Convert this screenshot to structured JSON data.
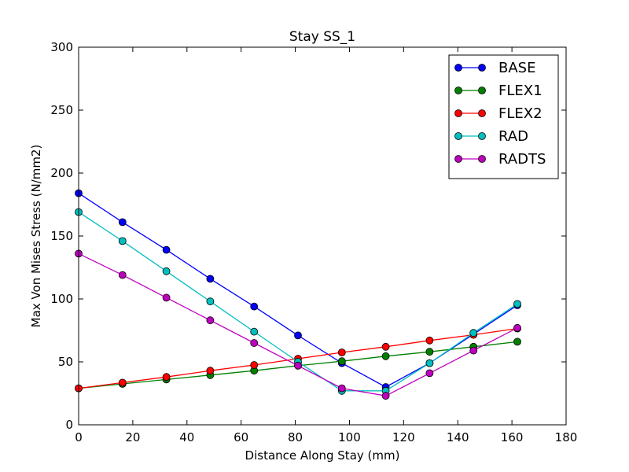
{
  "chart_data": {
    "type": "line",
    "title": "Stay SS_1",
    "xlabel": "Distance Along Stay (mm)",
    "ylabel": "Max Von Mises Stress (N/mm2)",
    "xlim": [
      0,
      180
    ],
    "ylim": [
      0,
      300
    ],
    "xticks": [
      "0",
      "20",
      "40",
      "60",
      "80",
      "100",
      "120",
      "140",
      "160",
      "180"
    ],
    "yticks": [
      "0",
      "50",
      "100",
      "150",
      "200",
      "250",
      "300"
    ],
    "grid": false,
    "legend_position": "top-right",
    "x": [
      0,
      16.2,
      32.4,
      48.6,
      64.8,
      81,
      97.2,
      113.4,
      129.6,
      145.8,
      162
    ],
    "series": [
      {
        "name": "BASE",
        "color": "#0000ff",
        "values": [
          184,
          161,
          139,
          116,
          94,
          71,
          49,
          30,
          49,
          72,
          95
        ]
      },
      {
        "name": "FLEX1",
        "color": "#008000",
        "values": [
          29,
          32.5,
          36,
          39.5,
          43,
          47,
          50.5,
          54.5,
          58,
          62,
          66
        ]
      },
      {
        "name": "FLEX2",
        "color": "#ff0000",
        "values": [
          29,
          33.5,
          38,
          43,
          47.5,
          52.5,
          57.5,
          62,
          67,
          71.5,
          76.5
        ]
      },
      {
        "name": "RAD",
        "color": "#00bfbf",
        "values": [
          169,
          146,
          122,
          98,
          74,
          50,
          27,
          27,
          49,
          73,
          96
        ]
      },
      {
        "name": "RADTS",
        "color": "#bf00bf",
        "values": [
          136,
          119,
          101,
          83,
          65,
          47,
          29,
          23,
          41,
          59,
          77
        ]
      }
    ]
  }
}
